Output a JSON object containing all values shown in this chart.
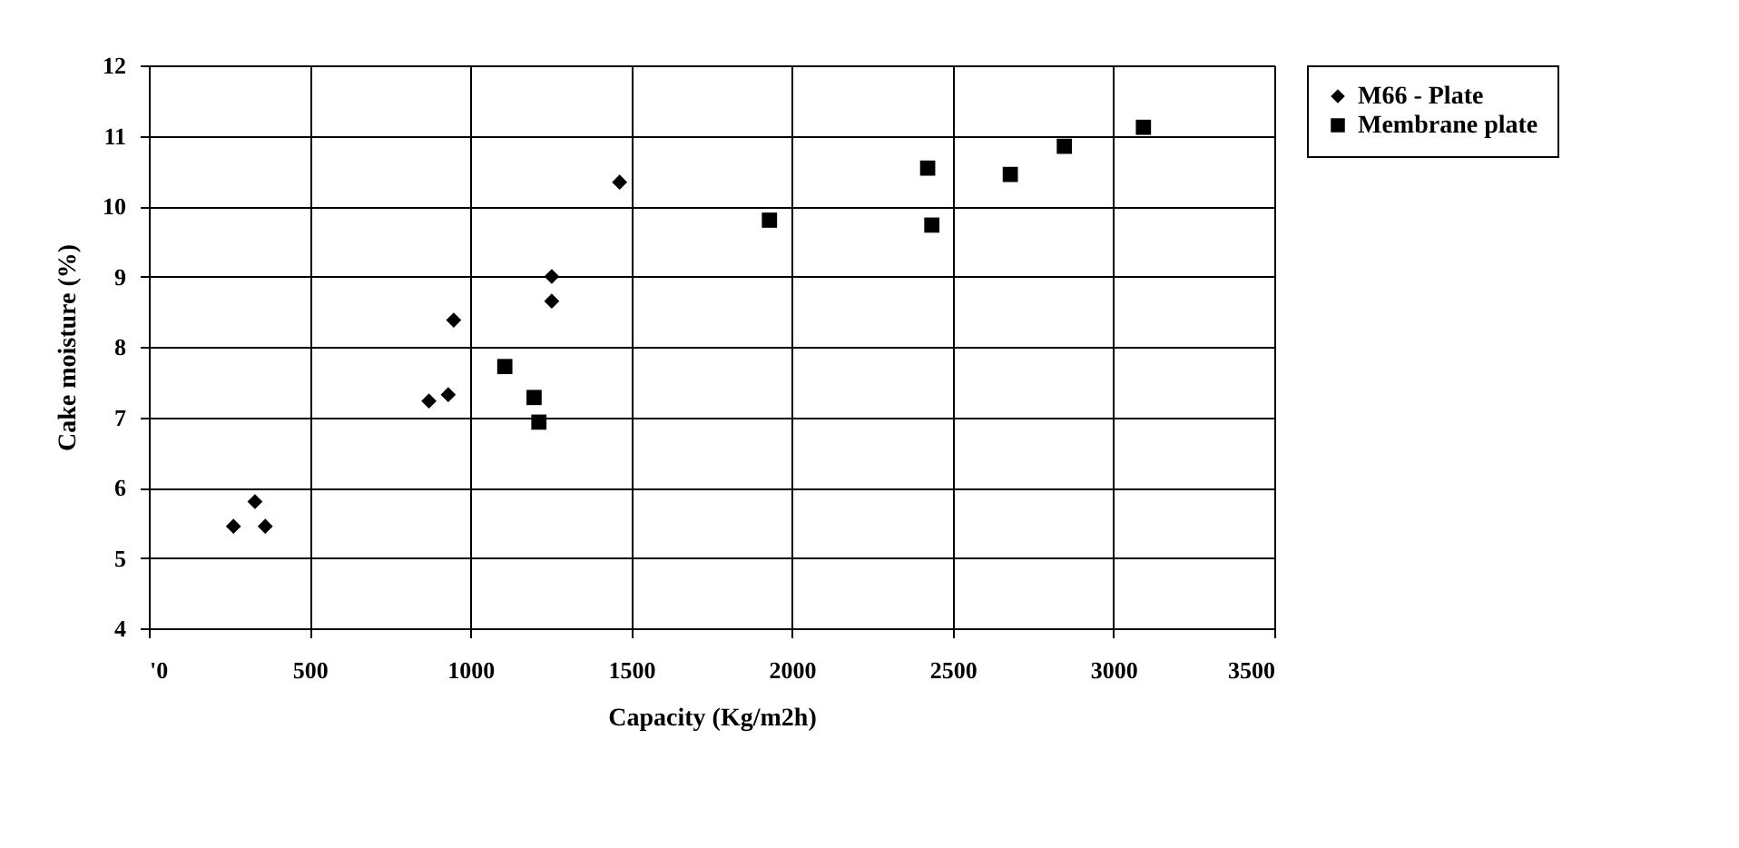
{
  "chart_data": {
    "type": "scatter",
    "xlabel": "Capacity (Kg/m2h)",
    "ylabel": "Cake moisture (%)",
    "xlim": [
      0,
      3500
    ],
    "xticks": [
      {
        "value": 0,
        "label": "'0"
      },
      500,
      1000,
      1500,
      2000,
      2500,
      3000,
      3500
    ],
    "ylim": [
      4,
      12
    ],
    "yticks": [
      4,
      5,
      6,
      7,
      8,
      9,
      10,
      11,
      12
    ],
    "grid": true,
    "legend": "right",
    "series": [
      {
        "name": "M66 - Plate",
        "color": "#000000",
        "marker": "diamond",
        "x": [
          263,
          330,
          362,
          871,
          931,
          948,
          1253,
          1253,
          1464
        ],
        "values": [
          5.45,
          5.8,
          5.45,
          7.23,
          7.32,
          8.38,
          9.0,
          8.65,
          10.34
        ]
      },
      {
        "name": "Membrane plate",
        "color": "#000000",
        "marker": "square",
        "x": [
          1107,
          1198,
          1213,
          1930,
          2422,
          2435,
          2679,
          2847,
          3093
        ],
        "values": [
          7.72,
          7.28,
          6.93,
          9.8,
          10.54,
          9.73,
          10.45,
          10.85,
          11.12
        ]
      }
    ]
  }
}
